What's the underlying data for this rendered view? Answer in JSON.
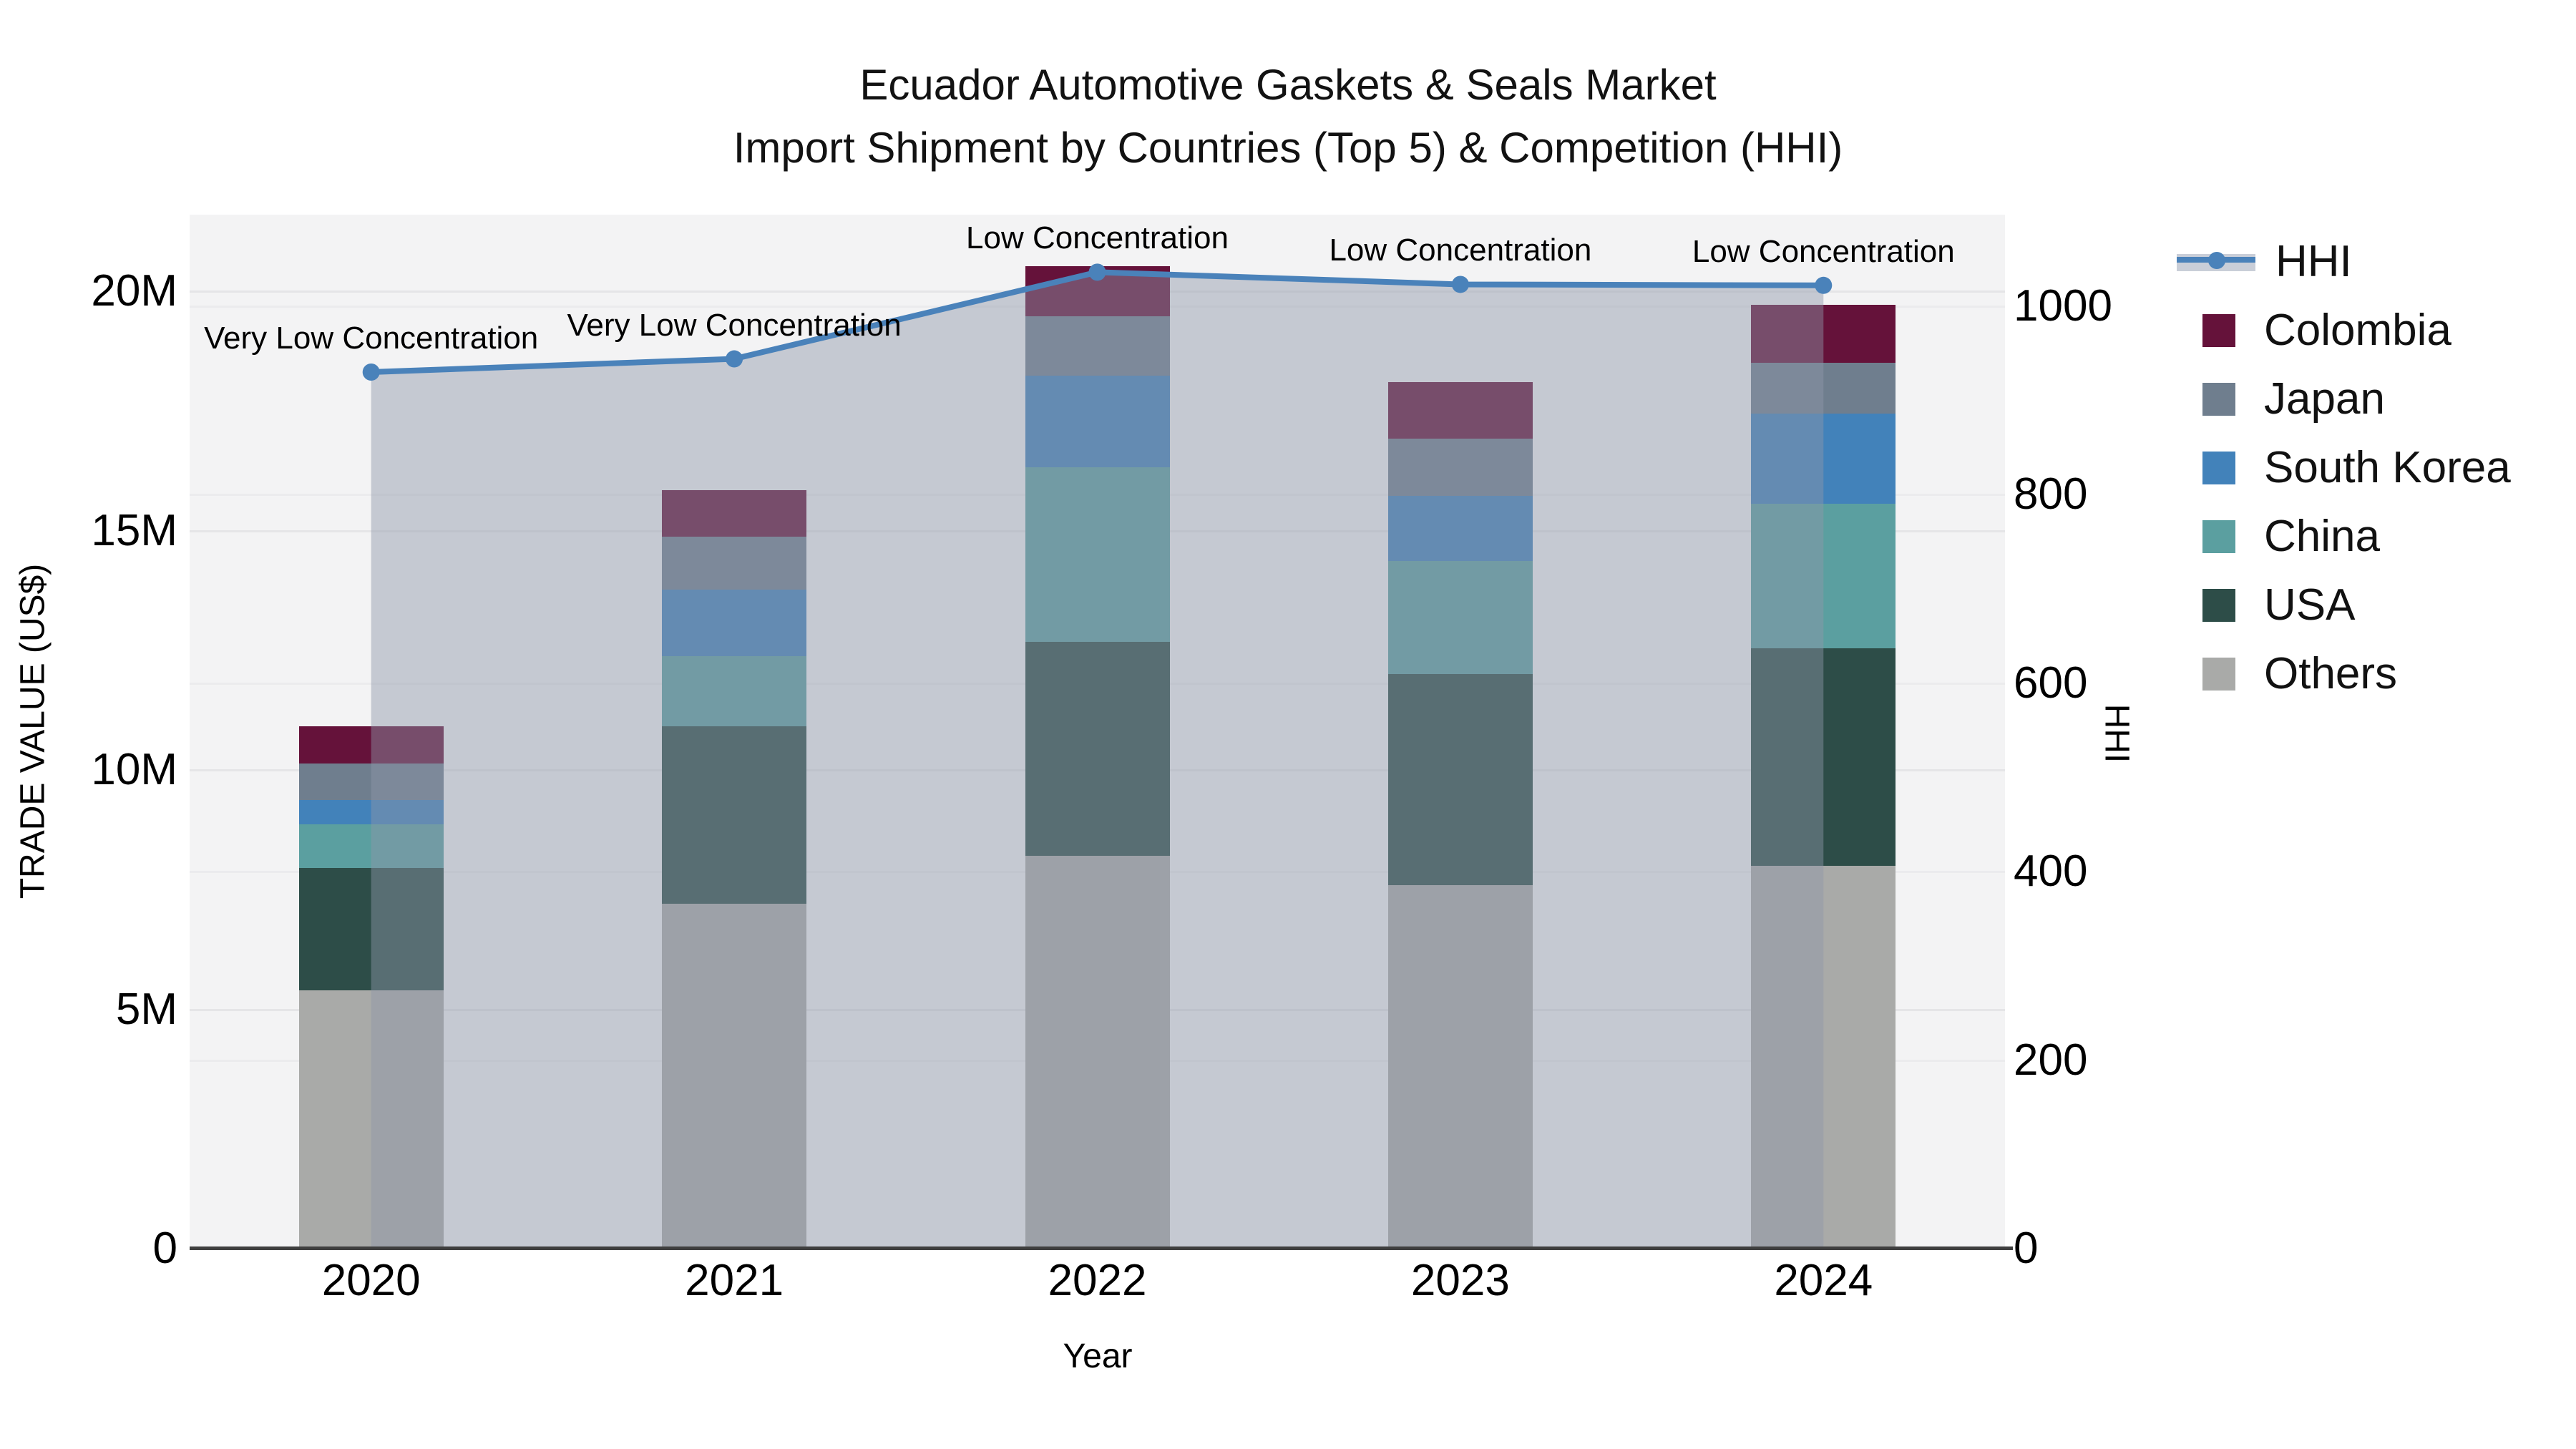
{
  "title": {
    "line1": "Ecuador Automotive Gaskets & Seals Market",
    "line2": "Import Shipment by Countries (Top 5) & Competition (HHI)"
  },
  "colors": {
    "plot_bg": "#f3f3f4",
    "grid": "#e5e5e7",
    "axis_line": "#3f3f3f",
    "text": "#000000",
    "hhi_line": "#4a82ba",
    "hhi_fill": "rgba(143,150,169,0.45)",
    "legend_band": "#c9ced8"
  },
  "chart_data": {
    "type": "bar+line",
    "title": "Ecuador Automotive Gaskets & Seals Market — Import Shipment by Countries (Top 5) & Competition (HHI)",
    "xlabel": "Year",
    "ylabel_left": "TRADE VALUE (US$)",
    "ylabel_right": "HHI",
    "categories": [
      "2020",
      "2021",
      "2022",
      "2023",
      "2024"
    ],
    "stack_order_bottom_to_top": [
      "Others",
      "USA",
      "China",
      "South Korea",
      "Japan",
      "Colombia"
    ],
    "series": [
      {
        "name": "Others",
        "color": "#a9aaa8",
        "values_musd": [
          5.4,
          7.2,
          8.21,
          7.59,
          8.0
        ]
      },
      {
        "name": "USA",
        "color": "#2d4d48",
        "values_musd": [
          2.55,
          3.71,
          4.46,
          4.41,
          4.54
        ]
      },
      {
        "name": "China",
        "color": "#5b9fa0",
        "values_musd": [
          0.91,
          1.46,
          3.66,
          2.36,
          3.02
        ]
      },
      {
        "name": "South Korea",
        "color": "#4282ba",
        "values_musd": [
          0.51,
          1.39,
          1.91,
          1.36,
          1.88
        ]
      },
      {
        "name": "Japan",
        "color": "#6f7e8e",
        "values_musd": [
          0.77,
          1.12,
          1.23,
          1.2,
          1.06
        ]
      },
      {
        "name": "Colombia",
        "color": "#65123a",
        "values_musd": [
          0.77,
          0.96,
          1.05,
          1.18,
          1.21
        ]
      }
    ],
    "totals_musd": [
      10.91,
      15.84,
      20.52,
      18.1,
      19.71
    ],
    "line_series": {
      "name": "HHI",
      "axis": "right",
      "values": [
        930,
        944,
        1036,
        1023,
        1022
      ]
    },
    "annotations": [
      {
        "category": "2020",
        "text": "Very Low Concentration"
      },
      {
        "category": "2021",
        "text": "Very Low Concentration"
      },
      {
        "category": "2022",
        "text": "Low Concentration"
      },
      {
        "category": "2023",
        "text": "Low Concentration"
      },
      {
        "category": "2024",
        "text": "Low Concentration"
      }
    ],
    "axes": {
      "y_left": {
        "range_musd": [
          0,
          21.6
        ],
        "ticks": [
          {
            "value": 0,
            "label": "0"
          },
          {
            "value": 5,
            "label": "5M"
          },
          {
            "value": 10,
            "label": "10M"
          },
          {
            "value": 15,
            "label": "15M"
          },
          {
            "value": 20,
            "label": "20M"
          }
        ]
      },
      "y_right": {
        "range": [
          0,
          1097
        ],
        "ticks": [
          {
            "value": 0,
            "label": "0"
          },
          {
            "value": 200,
            "label": "200"
          },
          {
            "value": 400,
            "label": "400"
          },
          {
            "value": 600,
            "label": "600"
          },
          {
            "value": 800,
            "label": "800"
          },
          {
            "value": 1000,
            "label": "1000"
          }
        ]
      },
      "grid": true,
      "legend_position": "right"
    },
    "legend": [
      {
        "name": "HHI",
        "type": "line"
      },
      {
        "name": "Colombia",
        "type": "square",
        "color": "#65123a"
      },
      {
        "name": "Japan",
        "type": "square",
        "color": "#6f7e8e"
      },
      {
        "name": "South Korea",
        "type": "square",
        "color": "#4282ba"
      },
      {
        "name": "China",
        "type": "square",
        "color": "#5b9fa0"
      },
      {
        "name": "USA",
        "type": "square",
        "color": "#2d4d48"
      },
      {
        "name": "Others",
        "type": "square",
        "color": "#a9aaa8"
      }
    ]
  }
}
